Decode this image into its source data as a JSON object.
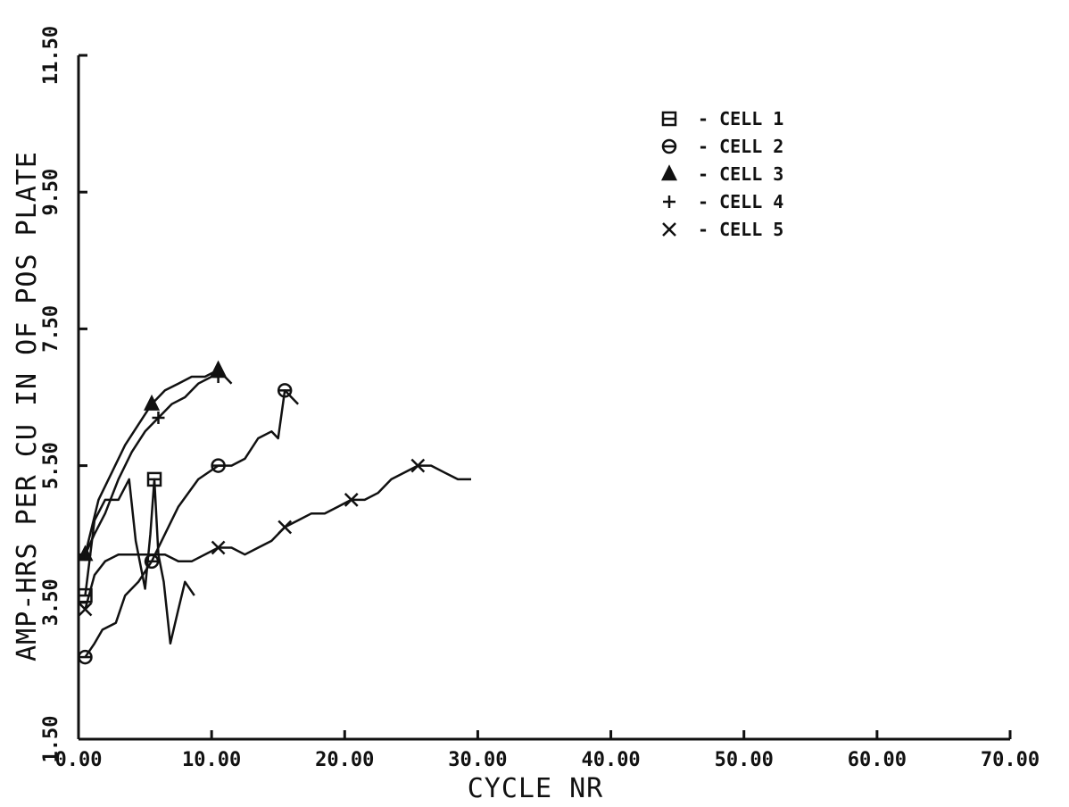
{
  "chart_data": {
    "type": "line",
    "xlabel": "CYCLE NR",
    "ylabel": "AMP-HRS PER CU IN OF POS PLATE",
    "xlim": [
      0,
      70
    ],
    "ylim": [
      1.5,
      11.5
    ],
    "x_tick_labels": [
      "0.00",
      "10.00",
      "20.00",
      "30.00",
      "40.00",
      "50.00",
      "60.00",
      "70.00"
    ],
    "x_tick_values": [
      0,
      10,
      20,
      30,
      40,
      50,
      60,
      70
    ],
    "y_tick_labels": [
      "1.50",
      "3.50",
      "5.50",
      "7.50",
      "9.50",
      "11.50"
    ],
    "y_tick_values": [
      1.5,
      3.5,
      5.5,
      7.5,
      9.5,
      11.5
    ],
    "legend_position": "top-right",
    "series": [
      {
        "name": "CELL 1",
        "marker": "square",
        "points": [
          [
            0.5,
            3.6
          ],
          [
            1.2,
            4.7
          ],
          [
            2,
            5.0
          ],
          [
            3.0,
            5.0
          ],
          [
            3.8,
            5.3
          ],
          [
            4.3,
            4.4
          ],
          [
            5.0,
            3.7
          ],
          [
            5.4,
            4.5
          ],
          [
            5.7,
            5.3
          ],
          [
            6.0,
            4.2
          ],
          [
            6.4,
            3.8
          ],
          [
            6.9,
            2.9
          ],
          [
            7.5,
            3.4
          ],
          [
            8.0,
            3.8
          ],
          [
            8.7,
            3.6
          ]
        ],
        "marked_points": [
          [
            0.5,
            3.6
          ],
          [
            5.7,
            5.3
          ]
        ]
      },
      {
        "name": "CELL 2",
        "marker": "circle",
        "points": [
          [
            0.5,
            2.7
          ],
          [
            1.2,
            2.9
          ],
          [
            1.8,
            3.1
          ],
          [
            2.8,
            3.2
          ],
          [
            3.5,
            3.6
          ],
          [
            4.5,
            3.8
          ],
          [
            5.5,
            4.1
          ],
          [
            6.5,
            4.5
          ],
          [
            7.5,
            4.9
          ],
          [
            9.0,
            5.3
          ],
          [
            10.5,
            5.5
          ],
          [
            11.5,
            5.5
          ],
          [
            12.5,
            5.6
          ],
          [
            13.5,
            5.9
          ],
          [
            14.5,
            6.0
          ],
          [
            15.0,
            5.9
          ],
          [
            15.5,
            6.6
          ],
          [
            16.0,
            6.5
          ],
          [
            16.5,
            6.4
          ]
        ],
        "marked_points": [
          [
            0.5,
            2.7
          ],
          [
            5.5,
            4.1
          ],
          [
            10.5,
            5.5
          ],
          [
            15.5,
            6.6
          ]
        ]
      },
      {
        "name": "CELL 3",
        "marker": "triangle",
        "points": [
          [
            0.5,
            4.2
          ],
          [
            1.5,
            5.0
          ],
          [
            2.5,
            5.4
          ],
          [
            3.5,
            5.8
          ],
          [
            4.5,
            6.1
          ],
          [
            5.5,
            6.4
          ],
          [
            6.5,
            6.6
          ],
          [
            7.5,
            6.7
          ],
          [
            8.5,
            6.8
          ],
          [
            9.5,
            6.8
          ],
          [
            10.5,
            6.9
          ],
          [
            11.5,
            6.7
          ]
        ],
        "marked_points": [
          [
            0.5,
            4.2
          ],
          [
            5.5,
            6.4
          ],
          [
            10.5,
            6.9
          ]
        ]
      },
      {
        "name": "CELL 4",
        "marker": "plus",
        "points": [
          [
            0.5,
            4.2
          ],
          [
            1.2,
            4.5
          ],
          [
            2.0,
            4.8
          ],
          [
            3.0,
            5.3
          ],
          [
            4.0,
            5.7
          ],
          [
            5.0,
            6.0
          ],
          [
            6.0,
            6.2
          ],
          [
            7.0,
            6.4
          ],
          [
            8.0,
            6.5
          ],
          [
            9.0,
            6.7
          ],
          [
            10.0,
            6.8
          ],
          [
            10.5,
            6.8
          ]
        ],
        "marked_points": [
          [
            0.5,
            4.2
          ],
          [
            6.0,
            6.2
          ],
          [
            10.5,
            6.8
          ]
        ]
      },
      {
        "name": "CELL 5",
        "marker": "x",
        "points": [
          [
            0.5,
            3.4
          ],
          [
            1.2,
            3.9
          ],
          [
            2.0,
            4.1
          ],
          [
            3.0,
            4.2
          ],
          [
            4.5,
            4.2
          ],
          [
            5.5,
            4.2
          ],
          [
            6.5,
            4.2
          ],
          [
            7.5,
            4.1
          ],
          [
            8.5,
            4.1
          ],
          [
            10.5,
            4.3
          ],
          [
            11.5,
            4.3
          ],
          [
            12.5,
            4.2
          ],
          [
            13.5,
            4.3
          ],
          [
            14.5,
            4.4
          ],
          [
            15.5,
            4.6
          ],
          [
            16.5,
            4.7
          ],
          [
            17.5,
            4.8
          ],
          [
            18.5,
            4.8
          ],
          [
            19.5,
            4.9
          ],
          [
            20.5,
            5.0
          ],
          [
            21.5,
            5.0
          ],
          [
            22.5,
            5.1
          ],
          [
            23.5,
            5.3
          ],
          [
            24.5,
            5.4
          ],
          [
            25.5,
            5.5
          ],
          [
            26.5,
            5.5
          ],
          [
            27.5,
            5.4
          ],
          [
            28.5,
            5.3
          ],
          [
            29.5,
            5.3
          ]
        ],
        "marked_points": [
          [
            0.5,
            3.4
          ],
          [
            10.5,
            4.3
          ],
          [
            15.5,
            4.6
          ],
          [
            20.5,
            5.0
          ],
          [
            25.5,
            5.5
          ]
        ]
      }
    ]
  }
}
